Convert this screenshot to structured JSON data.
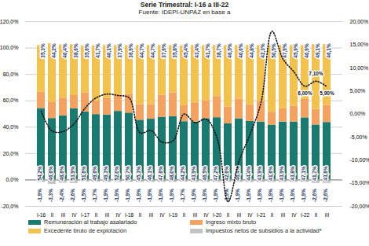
{
  "chart_data": {
    "type": "bar",
    "title": "Serie Trimestral: I-16 a III-22",
    "subtitle": "Fuente: IDEPI-UNPAZ en base a",
    "categories": [
      "I-16",
      "II",
      "III",
      "IV",
      "I-17",
      "II",
      "III",
      "IV",
      "I-18",
      "II",
      "III",
      "IV",
      "I-19",
      "II",
      "III",
      "IV",
      "I-20",
      "II",
      "III",
      "IV",
      "I-21",
      "II",
      "III",
      "IV",
      "I-22",
      "II",
      "III"
    ],
    "series": [
      {
        "name": "Remuneración al trabajo asalariado",
        "color": "#1b7a70",
        "values": [
          54.2,
          46.6,
          48.6,
          53.9,
          51.6,
          49.6,
          49.3,
          52.0,
          50.7,
          45.3,
          46.1,
          47.6,
          48.0,
          44.2,
          43.9,
          46.5,
          47.2,
          42.6,
          46.4,
          44.4,
          43.9,
          41.6,
          43.9,
          43.8,
          47.1,
          41.7,
          43.6
        ],
        "value_labels": [
          "54,2%",
          "46,6%",
          "48,6%",
          "53,9%",
          "51,6%",
          "49,6%",
          "49,3%",
          "52,0%",
          "50,7%",
          "45,3%",
          "46,1%",
          "47,6%",
          "48,0%",
          "44,2%",
          "43,9%",
          "46,5%",
          "47,2%",
          "42,6%",
          "46,4%",
          "44,4%",
          "43,9%",
          "41,6%",
          "43,9%",
          "43,8%",
          "47,1%",
          "41,7%",
          "43,6%"
        ]
      },
      {
        "name": "Ingreso mixto bruto",
        "color": "#f4a261",
        "values": [
          12.4,
          12.5,
          13.4,
          10.1,
          14.3,
          10.4,
          12.5,
          12.0,
          14.3,
          11.9,
          11.1,
          16.7,
          18.1,
          12.1,
          14.6,
          13.7,
          16.0,
          12.8,
          14.9,
          12.7,
          15.7,
          9.8,
          10.1,
          12.2,
          13.9,
          11.8,
          12.9
        ]
      },
      {
        "name": "Excedente bruto de explotación",
        "color": "#f2c14e",
        "values": [
          35.3,
          44.2,
          40.4,
          38.6,
          35.6,
          41.7,
          40.1,
          37.9,
          36.9,
          44.7,
          44.7,
          37.6,
          35.8,
          45.4,
          43.4,
          41.7,
          38.7,
          46.5,
          40.6,
          44.8,
          42.3,
          50.5,
          47.9,
          45.9,
          40.9,
          49.1,
          46.1
        ],
        "value_labels": [
          "35,3%",
          "44,2%",
          "40,4%",
          "38,6%",
          "35,6%",
          "41,7%",
          "40,1%",
          "37,9%",
          "36,9%",
          "44,7%",
          "44,7%",
          "37,6%",
          "35,8%",
          "45,4%",
          "43,4%",
          "41,7%",
          "38,7%",
          "46,5%",
          "40,6%",
          "44,8%",
          "42,3%",
          "50,5%",
          "47,9%",
          "45,9%",
          "40,9%",
          "49,1%",
          "46,1%"
        ]
      },
      {
        "name": "Impuestos netos de subsidios a la actividad*",
        "color": "#c4c4c4",
        "values": [
          -1.9,
          -3.3,
          -2.4,
          -2.6,
          -1.5,
          -1.7,
          -1.9,
          -1.9,
          -1.9,
          -1.9,
          -1.9,
          -1.9,
          -1.9,
          -1.7,
          -1.9,
          -1.9,
          -1.9,
          -1.9,
          -1.9,
          -1.9,
          -1.9,
          -1.9,
          -1.9,
          -1.9,
          -1.9,
          -2.6,
          -2.6
        ],
        "value_labels": [
          "-1,9%",
          "-3,3%",
          "-2,4%",
          "-2,6%",
          "-1,5%",
          "-1,7%",
          "-1,9%",
          "-1,9%",
          "-1,9%",
          "-1,9%",
          "-1,9%",
          "-1,9%",
          "-1,9%",
          "-1,7%",
          "-1,9%",
          "-1,9%",
          "-1,9%",
          "-1,9%",
          "-1,9%",
          "-1,9%",
          "-1,9%",
          "-1,9%",
          "-1,9%",
          "-1,9%",
          "-1,9%",
          "-2,6%",
          "-2,6%"
        ]
      },
      {
        "type": "line",
        "axis": "y2",
        "color": "#111111",
        "line_style": "dotted",
        "values": [
          0.6,
          -3.7,
          -3.8,
          -2.1,
          1.3,
          3.5,
          4.3,
          4,
          3.5,
          -4.1,
          -3.6,
          -6.1,
          -5.8,
          0,
          -1.9,
          -1.1,
          -5.2,
          -19,
          -10.2,
          -4.4,
          2.5,
          17.9,
          11.9,
          9.1,
          6,
          7.1,
          5.9
        ],
        "value_labels": [
          null,
          null,
          null,
          null,
          null,
          null,
          null,
          null,
          null,
          null,
          null,
          null,
          null,
          null,
          null,
          null,
          null,
          null,
          null,
          null,
          null,
          null,
          null,
          null,
          "6,00%",
          "7,10%",
          "5,90%"
        ]
      }
    ],
    "ylim": [
      -20,
      120
    ],
    "yticks": [
      {
        "value": -20,
        "label": "-20,0%"
      },
      {
        "value": 0,
        "label": "0,0%"
      },
      {
        "value": 20,
        "label": "20,0%"
      },
      {
        "value": 40,
        "label": "40,0%"
      },
      {
        "value": 60,
        "label": "60,0%"
      },
      {
        "value": 80,
        "label": "80,0%"
      },
      {
        "value": 100,
        "label": "100,0%"
      },
      {
        "value": 120,
        "label": "120,0%"
      }
    ],
    "y2lim": [
      -20,
      20
    ],
    "y2ticks": [
      {
        "value": -20,
        "label": "-20,00%"
      },
      {
        "value": -15,
        "label": "-15,00%"
      },
      {
        "value": -10,
        "label": "-10,00%"
      },
      {
        "value": -5,
        "label": "-5,00%"
      },
      {
        "value": 0,
        "label": "0,00%"
      },
      {
        "value": 5,
        "label": "5,00%"
      },
      {
        "value": 10,
        "label": "10,00%"
      },
      {
        "value": 15,
        "label": "15,00%"
      },
      {
        "value": 20,
        "label": "20,00%"
      }
    ],
    "stacked": true,
    "grid": true,
    "data_labels": true,
    "legend": "bottom"
  }
}
